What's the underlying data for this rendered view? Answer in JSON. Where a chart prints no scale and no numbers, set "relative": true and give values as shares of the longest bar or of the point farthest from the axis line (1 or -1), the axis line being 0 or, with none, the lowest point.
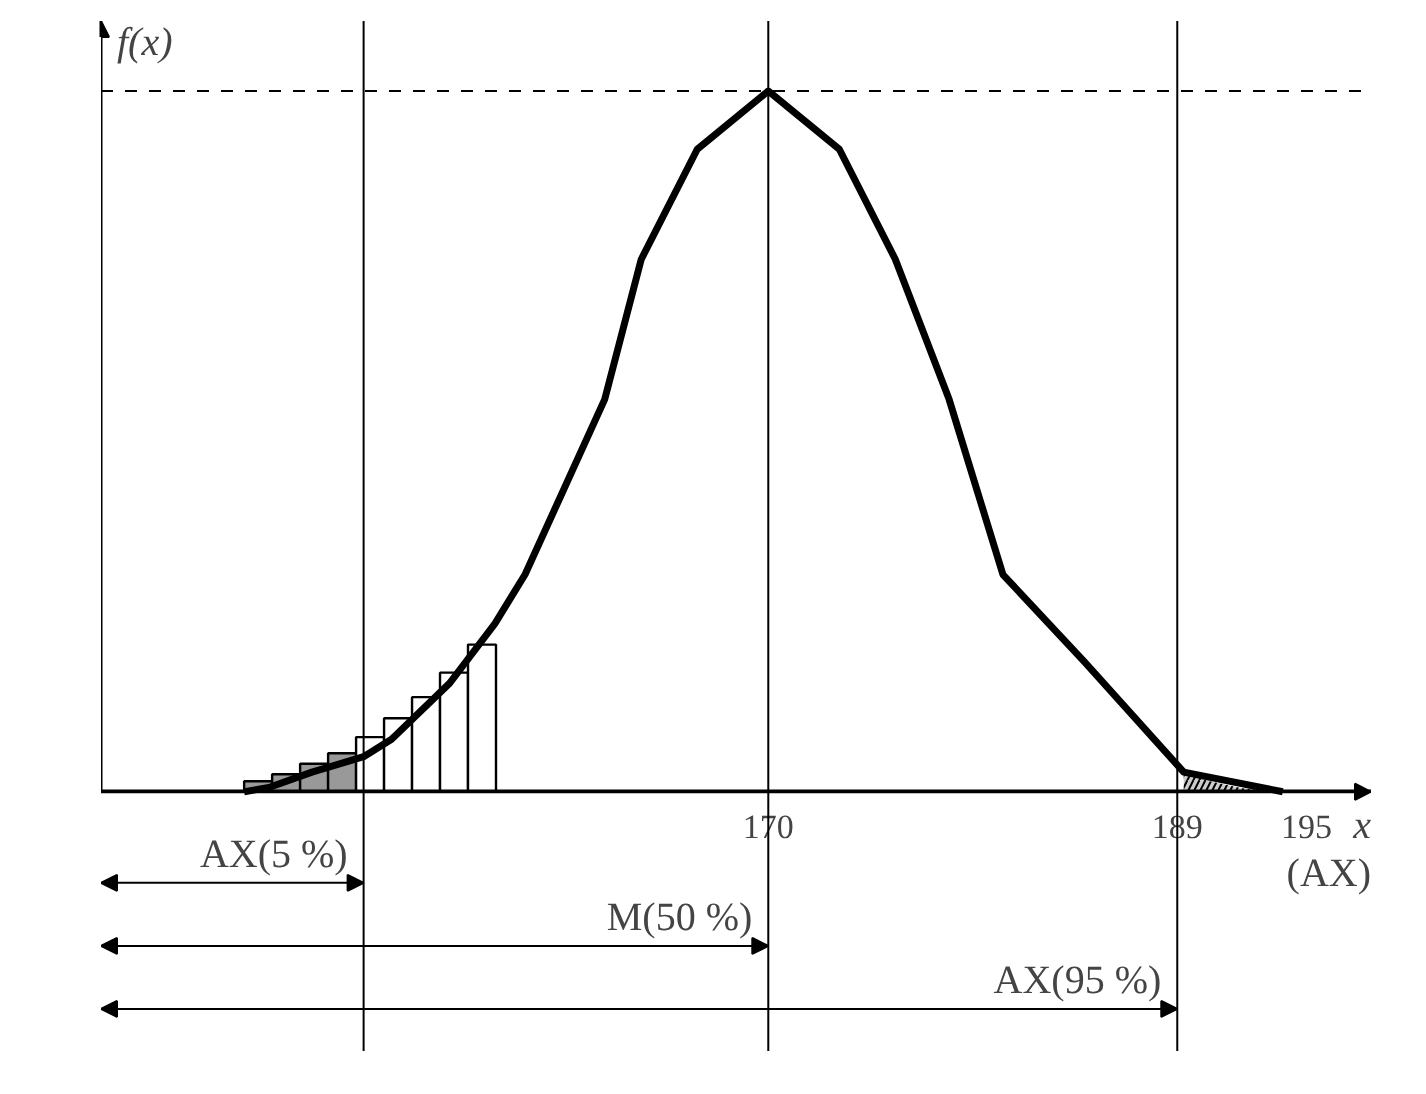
{
  "chart_data": {
    "type": "line",
    "relative": true,
    "ylabel": "f(x)",
    "xlabel": "x",
    "xlim": [
      139,
      198
    ],
    "xticks": [
      170,
      189,
      195
    ],
    "grid": false,
    "series": [
      {
        "type": "bar",
        "color": "#000000",
        "colors": [
          "#999999",
          "#999999",
          "#999999",
          "#999999",
          "#ffffff",
          "#ffffff",
          "#ffffff",
          "#ffffff",
          "#ffffff"
        ],
        "x": [
          146.3,
          147.6,
          148.9,
          150.2,
          151.5,
          152.8,
          154.1,
          155.4,
          156.7
        ],
        "values": [
          0.015,
          0.025,
          0.04,
          0.055,
          0.078,
          0.105,
          0.135,
          0.17,
          0.21
        ]
      },
      {
        "type": "area",
        "color": "#999999",
        "x": [
          189.3,
          190.5,
          192,
          193.9
        ],
        "values": [
          0.028,
          0.015,
          0.005,
          0
        ]
      },
      {
        "color": "#000000",
        "x": [
          145.65,
          146.8,
          148.8,
          151.2,
          152.5,
          155.2,
          157.3,
          158.7,
          162.4,
          164.1,
          166.7,
          170,
          173.3,
          175.9,
          178.4,
          180.9,
          184.7,
          189.3,
          193.9
        ],
        "values": [
          0,
          0.006,
          0.028,
          0.05,
          0.075,
          0.155,
          0.24,
          0.31,
          0.56,
          0.76,
          0.917,
          1,
          0.917,
          0.76,
          0.56,
          0.31,
          0.185,
          0.028,
          0
        ]
      }
    ],
    "ref_lines": [
      {
        "axis": "x",
        "value": 170
      },
      {
        "axis": "x",
        "value": 189
      },
      {
        "axis": "x",
        "value": 151.2
      },
      {
        "axis": "y",
        "value": 1,
        "line_style": "dashed"
      }
    ],
    "annotations": [
      {
        "text": "AX(5 %)",
        "x": 151.2,
        "y": -0.13
      },
      {
        "text": "M(50 %)",
        "x": 170,
        "y": -0.22
      },
      {
        "text": "AX(95 %)",
        "x": 189,
        "y": -0.31
      },
      "(AX)"
    ]
  }
}
